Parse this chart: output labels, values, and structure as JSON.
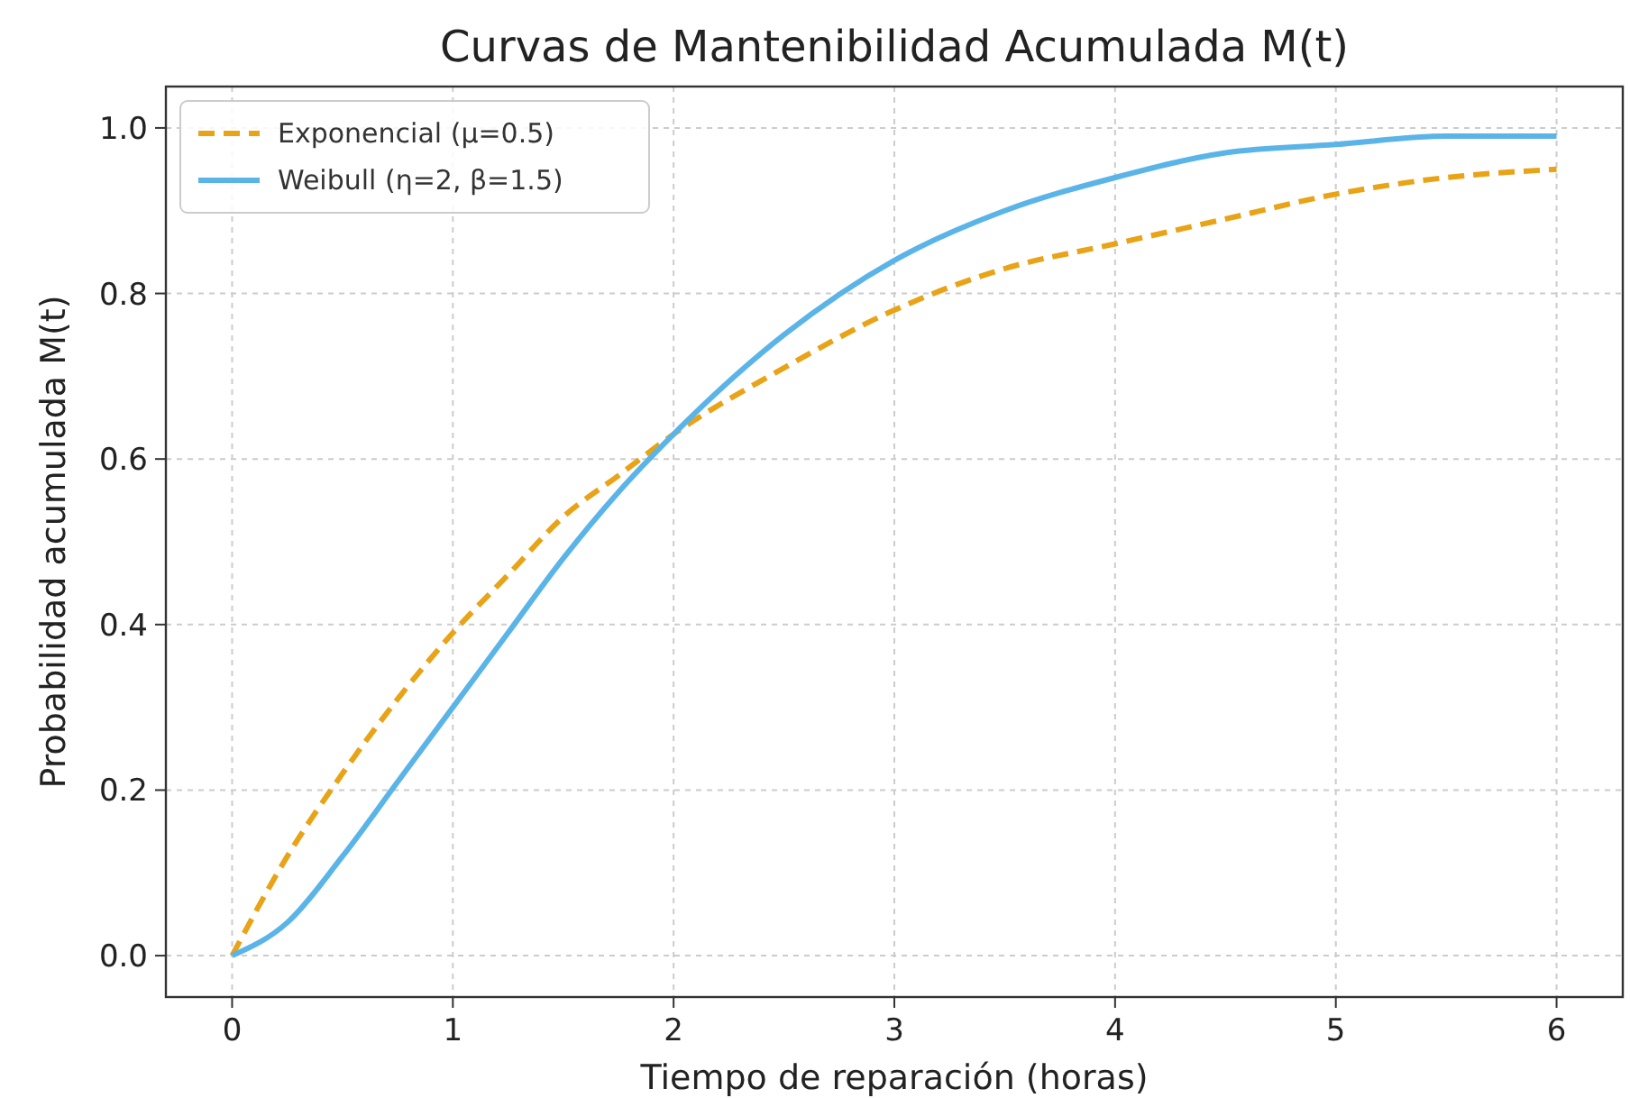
{
  "chart_data": {
    "type": "line",
    "title": "Curvas de Mantenibilidad Acumulada M(t)",
    "xlabel": "Tiempo de reparación (horas)",
    "ylabel": "Probabilidad acumulada M(t)",
    "x": [
      0,
      0.25,
      0.5,
      0.75,
      1,
      1.25,
      1.5,
      1.75,
      2,
      2.5,
      3,
      3.5,
      4,
      4.5,
      5,
      5.5,
      6
    ],
    "series": [
      {
        "name": "Exponencial (μ=0.5)",
        "color": "#e8a317",
        "line_style": "dashed",
        "values": [
          0,
          0.12,
          0.22,
          0.31,
          0.39,
          0.46,
          0.53,
          0.58,
          0.63,
          0.71,
          0.78,
          0.83,
          0.86,
          0.89,
          0.92,
          0.94,
          0.95
        ]
      },
      {
        "name": "Weibull (η=2, β=1.5)",
        "color": "#5ab4e8",
        "line_style": "solid",
        "values": [
          0,
          0.04,
          0.12,
          0.21,
          0.3,
          0.39,
          0.48,
          0.56,
          0.63,
          0.75,
          0.84,
          0.9,
          0.94,
          0.97,
          0.98,
          0.99,
          0.99
        ]
      }
    ],
    "xlim": [
      -0.3,
      6.3
    ],
    "xticks": [
      0,
      1,
      2,
      3,
      4,
      5,
      6
    ],
    "ylim": [
      -0.05,
      1.05
    ],
    "yticks": [
      {
        "value": 0,
        "label": "0.0"
      },
      0.2,
      0.4,
      0.6,
      0.8,
      {
        "value": 1,
        "label": "1.0"
      }
    ],
    "grid": true,
    "legend": "top left",
    "marker": "none"
  }
}
